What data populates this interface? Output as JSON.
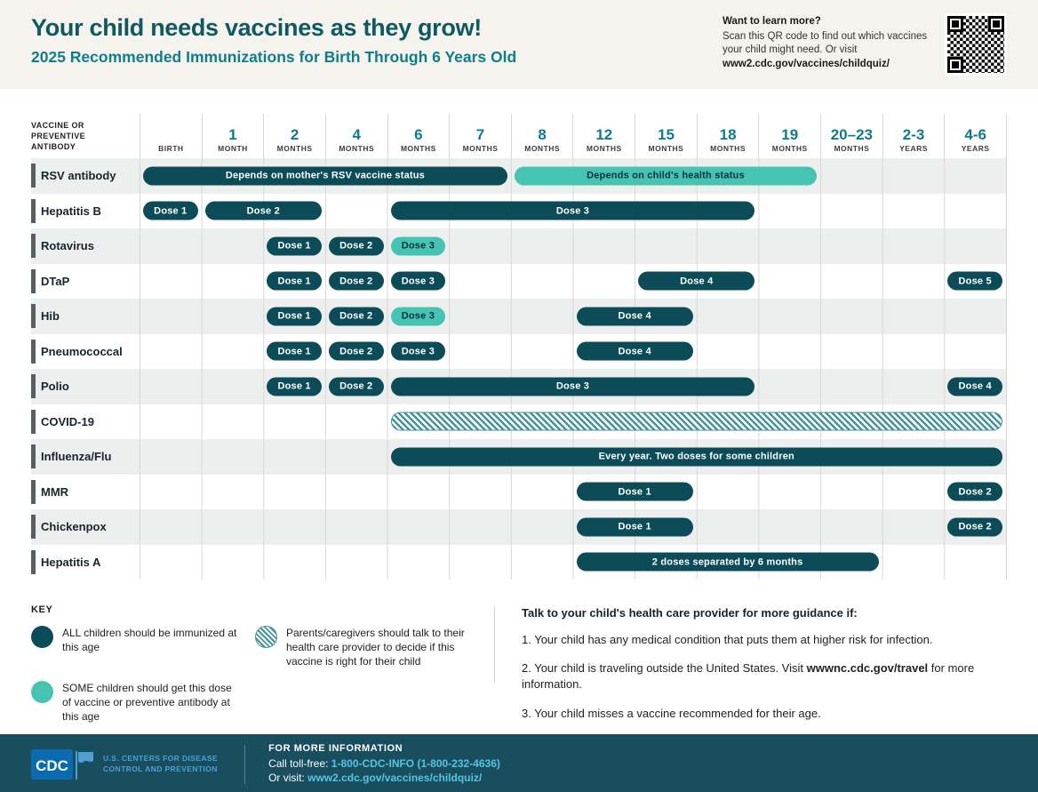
{
  "colors": {
    "dark": "#0C4C58",
    "teal": "#46C3B2",
    "hatch": "#44939C",
    "title": "#0E5A60",
    "subtitle": "#0F7E8A",
    "header-num": "#0E7B88",
    "footer-bg": "#184E5D",
    "link": "#56C4E4"
  },
  "header": {
    "title": "Your child needs vaccines as they grow!",
    "subtitle": "2025 Recommended Immunizations for Birth Through 6 Years Old",
    "learn_more": {
      "title": "Want to learn more?",
      "text": "Scan this QR code to find out which vaccines your child might need. Or visit",
      "url": "www2.cdc.gov/vaccines/childquiz/"
    },
    "qr_icon": "qr-code"
  },
  "table": {
    "corner_label": "VACCINE OR PREVENTIVE ANTIBODY",
    "columns": [
      {
        "num": "",
        "unit": "BIRTH"
      },
      {
        "num": "1",
        "unit": "MONTH"
      },
      {
        "num": "2",
        "unit": "MONTHS"
      },
      {
        "num": "4",
        "unit": "MONTHS"
      },
      {
        "num": "6",
        "unit": "MONTHS"
      },
      {
        "num": "7",
        "unit": "MONTHS"
      },
      {
        "num": "8",
        "unit": "MONTHS"
      },
      {
        "num": "12",
        "unit": "MONTHS"
      },
      {
        "num": "15",
        "unit": "MONTHS"
      },
      {
        "num": "18",
        "unit": "MONTHS"
      },
      {
        "num": "19",
        "unit": "MONTHS"
      },
      {
        "num": "20–23",
        "unit": "MONTHS"
      },
      {
        "num": "2-3",
        "unit": "YEARS"
      },
      {
        "num": "4-6",
        "unit": "YEARS"
      }
    ],
    "rows": [
      {
        "label": "RSV antibody",
        "bars": [
          {
            "text": "Depends on mother's RSV vaccine status",
            "style": "dark",
            "start": 0,
            "end": 5
          },
          {
            "text": "Depends on child's health status",
            "style": "teal",
            "start": 6,
            "end": 10
          }
        ]
      },
      {
        "label": "Hepatitis B",
        "bars": [
          {
            "text": "Dose 1",
            "style": "dark",
            "start": 0,
            "end": 0
          },
          {
            "text": "Dose 2",
            "style": "dark",
            "start": 1,
            "end": 2
          },
          {
            "text": "Dose 3",
            "style": "dark",
            "start": 4,
            "end": 9
          }
        ]
      },
      {
        "label": "Rotavirus",
        "bars": [
          {
            "text": "Dose 1",
            "style": "dark",
            "start": 2,
            "end": 2
          },
          {
            "text": "Dose 2",
            "style": "dark",
            "start": 3,
            "end": 3
          },
          {
            "text": "Dose 3",
            "style": "teal",
            "start": 4,
            "end": 4
          }
        ]
      },
      {
        "label": "DTaP",
        "bars": [
          {
            "text": "Dose 1",
            "style": "dark",
            "start": 2,
            "end": 2
          },
          {
            "text": "Dose 2",
            "style": "dark",
            "start": 3,
            "end": 3
          },
          {
            "text": "Dose 3",
            "style": "dark",
            "start": 4,
            "end": 4
          },
          {
            "text": "Dose 4",
            "style": "dark",
            "start": 8,
            "end": 9
          },
          {
            "text": "Dose 5",
            "style": "dark",
            "start": 13,
            "end": 13
          }
        ]
      },
      {
        "label": "Hib",
        "bars": [
          {
            "text": "Dose 1",
            "style": "dark",
            "start": 2,
            "end": 2
          },
          {
            "text": "Dose 2",
            "style": "dark",
            "start": 3,
            "end": 3
          },
          {
            "text": "Dose 3",
            "style": "teal",
            "start": 4,
            "end": 4
          },
          {
            "text": "Dose 4",
            "style": "dark",
            "start": 7,
            "end": 8
          }
        ]
      },
      {
        "label": "Pneumococcal",
        "bars": [
          {
            "text": "Dose 1",
            "style": "dark",
            "start": 2,
            "end": 2
          },
          {
            "text": "Dose 2",
            "style": "dark",
            "start": 3,
            "end": 3
          },
          {
            "text": "Dose 3",
            "style": "dark",
            "start": 4,
            "end": 4
          },
          {
            "text": "Dose 4",
            "style": "dark",
            "start": 7,
            "end": 8
          }
        ]
      },
      {
        "label": "Polio",
        "bars": [
          {
            "text": "Dose 1",
            "style": "dark",
            "start": 2,
            "end": 2
          },
          {
            "text": "Dose 2",
            "style": "dark",
            "start": 3,
            "end": 3
          },
          {
            "text": "Dose 3",
            "style": "dark",
            "start": 4,
            "end": 9
          },
          {
            "text": "Dose 4",
            "style": "dark",
            "start": 13,
            "end": 13
          }
        ]
      },
      {
        "label": "COVID-19",
        "bars": [
          {
            "text": "",
            "style": "hatch",
            "start": 4,
            "end": 13
          }
        ]
      },
      {
        "label": "Influenza/Flu",
        "bars": [
          {
            "text": "Every year. Two doses for some children",
            "style": "dark",
            "start": 4,
            "end": 13
          }
        ]
      },
      {
        "label": "MMR",
        "bars": [
          {
            "text": "Dose 1",
            "style": "dark",
            "start": 7,
            "end": 8
          },
          {
            "text": "Dose 2",
            "style": "dark",
            "start": 13,
            "end": 13
          }
        ]
      },
      {
        "label": "Chickenpox",
        "bars": [
          {
            "text": "Dose 1",
            "style": "dark",
            "start": 7,
            "end": 8
          },
          {
            "text": "Dose 2",
            "style": "dark",
            "start": 13,
            "end": 13
          }
        ]
      },
      {
        "label": "Hepatitis A",
        "bars": [
          {
            "text": "2 doses separated by 6 months",
            "style": "dark",
            "start": 7,
            "end": 11
          }
        ]
      }
    ]
  },
  "key": {
    "title": "KEY",
    "items": [
      {
        "swatch": "dark-circle",
        "text": "ALL children should be immunized at this age"
      },
      {
        "swatch": "teal-circle",
        "text": "SOME children should get this dose of vaccine or preventive antibody at this age"
      },
      {
        "swatch": "hatched-circle",
        "text": "Parents/caregivers should talk to their health care provider to decide if this vaccine is right for their child"
      }
    ]
  },
  "guidance": {
    "title": "Talk to your child's health care provider for more guidance if:",
    "items": [
      {
        "num": "1.",
        "pre": "Your child has any medical condition that puts them at higher risk for infection.",
        "link": "",
        "post": ""
      },
      {
        "num": "2.",
        "pre": "Your child is traveling outside the United States. Visit ",
        "link": "wwwnc.cdc.gov/travel",
        "post": " for more information."
      },
      {
        "num": "3.",
        "pre": "Your child misses a vaccine recommended for their age.",
        "link": "",
        "post": ""
      }
    ]
  },
  "footer": {
    "logo_text": "CDC",
    "agency_line1": "U.S. CENTERS FOR DISEASE",
    "agency_line2": "CONTROL AND PREVENTION",
    "info_title": "FOR MORE INFORMATION",
    "phone_label": "Call toll-free:",
    "phone": "1-800-CDC-INFO (1-800-232-4636)",
    "visit_label": "Or visit:",
    "url": "www2.cdc.gov/vaccines/childquiz/"
  }
}
